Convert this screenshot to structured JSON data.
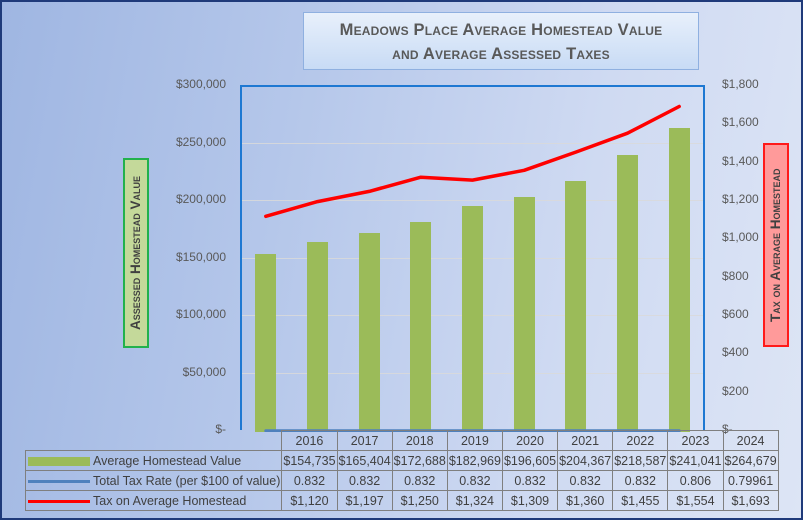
{
  "title": {
    "line1": "Meadows Place Average Homestead Value",
    "line2": "and Average Assessed Taxes"
  },
  "axes": {
    "left_title": "Assessed Homestead Value",
    "right_title": "Tax on Average Homestead",
    "left_ticks": [
      "$300,000",
      "$250,000",
      "$200,000",
      "$150,000",
      "$100,000",
      "$50,000",
      "$-"
    ],
    "right_ticks": [
      "$1,800",
      "$1,600",
      "$1,400",
      "$1,200",
      "$1,000",
      "$800",
      "$600",
      "$400",
      "$200",
      "$-"
    ]
  },
  "colors": {
    "bar": "#9bbb59",
    "tax_rate_line": "#4f81bd",
    "tax_line": "#ff0000",
    "plot_border": "#1e78d2",
    "left_title_bg": "#c4d99a",
    "left_title_border": "#22b14c",
    "right_title_bg": "#ff9a9a",
    "right_title_border": "#ff1a1a"
  },
  "table": {
    "years": [
      "2016",
      "2017",
      "2018",
      "2019",
      "2020",
      "2021",
      "2022",
      "2023",
      "2024"
    ],
    "rows": [
      {
        "label": "Average Homestead Value",
        "values": [
          "$154,735",
          "$165,404",
          "$172,688",
          "$182,969",
          "$196,605",
          "$204,367",
          "$218,587",
          "$241,041",
          "$264,679"
        ]
      },
      {
        "label": "Total Tax Rate (per $100 of value)",
        "values": [
          "0.832",
          "0.832",
          "0.832",
          "0.832",
          "0.832",
          "0.832",
          "0.832",
          "0.806",
          "0.79961"
        ]
      },
      {
        "label": "Tax on Average Homestead",
        "values": [
          "$1,120",
          "$1,197",
          "$1,250",
          "$1,324",
          "$1,309",
          "$1,360",
          "$1,455",
          "$1,554",
          "$1,693"
        ]
      }
    ]
  },
  "chart_data": {
    "type": "bar",
    "title": "Meadows Place Average Homestead Value and Average Assessed Taxes",
    "xlabel": "",
    "ylabel": "Assessed Homestead Value",
    "y2label": "Tax on Average Homestead",
    "categories": [
      "2016",
      "2017",
      "2018",
      "2019",
      "2020",
      "2021",
      "2022",
      "2023",
      "2024"
    ],
    "ylim": [
      0,
      300000
    ],
    "y2lim": [
      0,
      1800
    ],
    "grid": true,
    "legend_position": "data-table-bottom",
    "series": [
      {
        "name": "Average Homestead Value",
        "type": "bar",
        "axis": "left",
        "values": [
          154735,
          165404,
          172688,
          182969,
          196605,
          204367,
          218587,
          241041,
          264679
        ]
      },
      {
        "name": "Total Tax Rate (per $100 of value)",
        "type": "line",
        "axis": "right",
        "values": [
          0.832,
          0.832,
          0.832,
          0.832,
          0.832,
          0.832,
          0.832,
          0.806,
          0.79961
        ]
      },
      {
        "name": "Tax on Average Homestead",
        "type": "line",
        "axis": "right",
        "values": [
          1120,
          1197,
          1250,
          1324,
          1309,
          1360,
          1455,
          1554,
          1693
        ]
      }
    ]
  }
}
